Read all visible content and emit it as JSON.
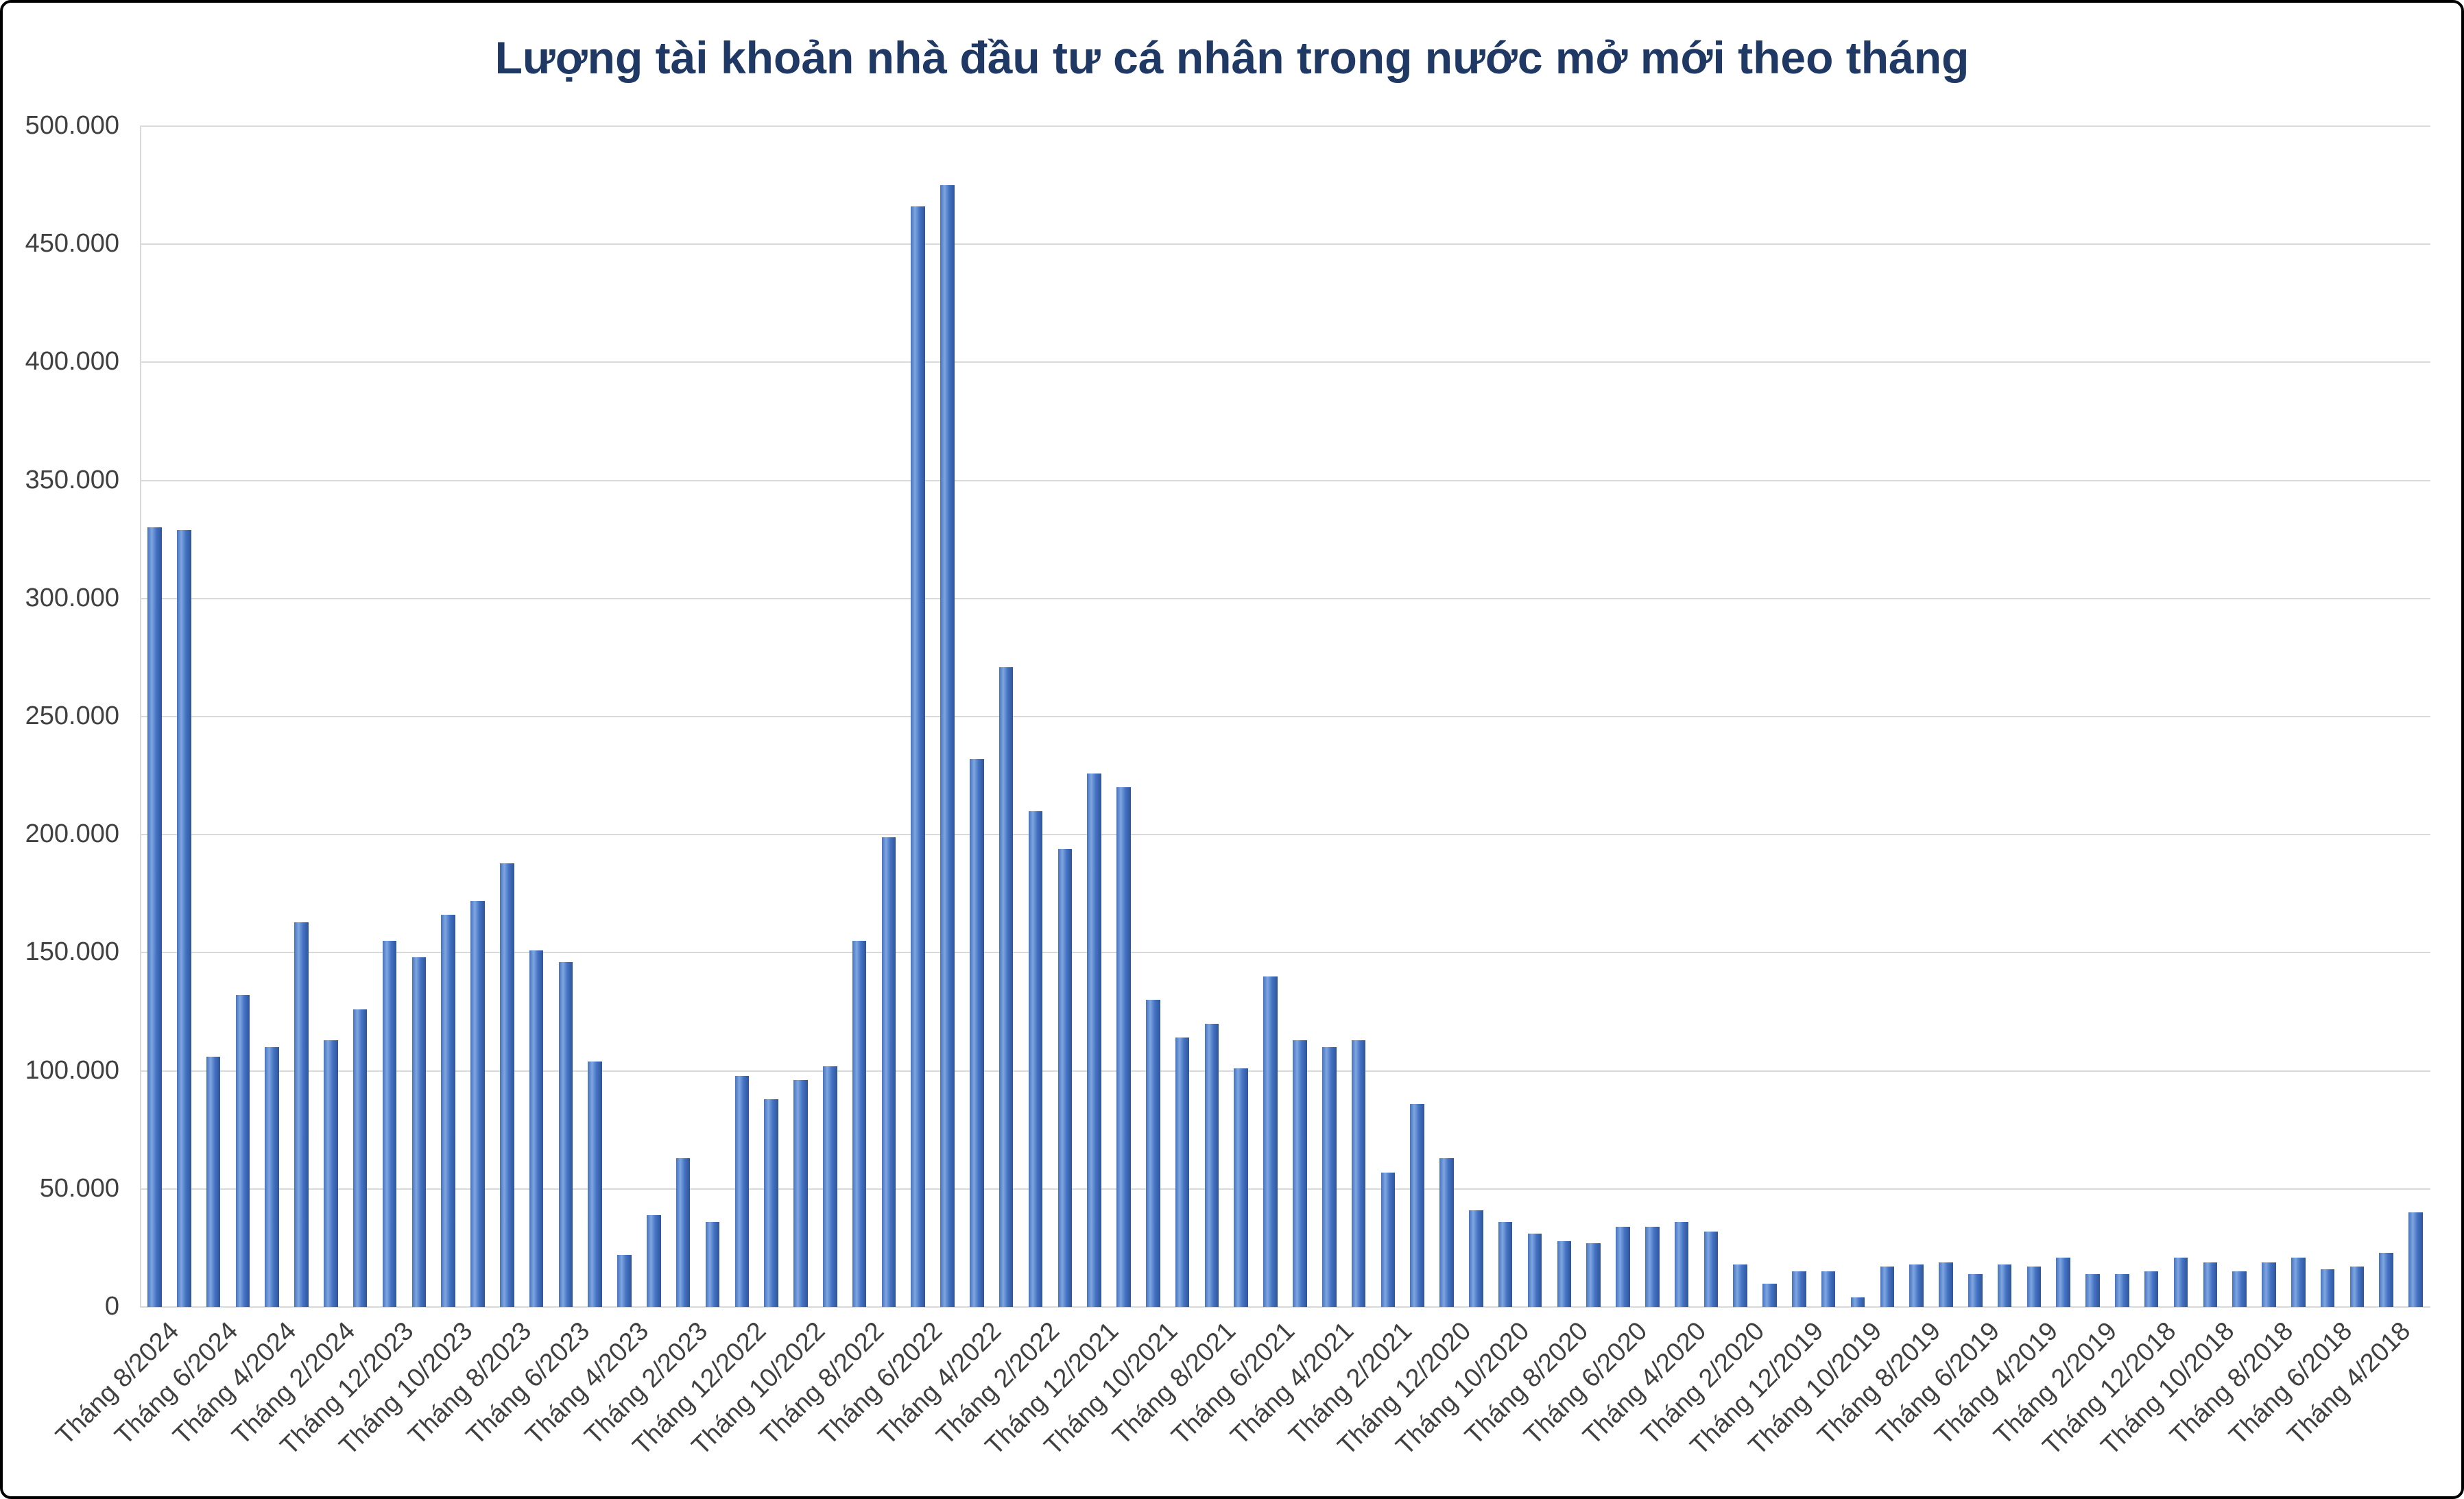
{
  "chart_data": {
    "type": "bar",
    "title": "Lượng tài khoản nhà đầu tư cá nhân trong nước mở mới theo tháng",
    "ylabel": "",
    "xlabel": "",
    "ylim": [
      0,
      500000
    ],
    "ytick_step": 50000,
    "grid": true,
    "legend": false,
    "y_tick_labels": [
      "0",
      "50.000",
      "100.000",
      "150.000",
      "200.000",
      "250.000",
      "300.000",
      "350.000",
      "400.000",
      "450.000",
      "500.000"
    ],
    "x_tick_labels": [
      "Tháng 8/2024",
      "Tháng 6/2024",
      "Tháng 4/2024",
      "Tháng 2/2024",
      "Tháng 12/2023",
      "Tháng 10/2023",
      "Tháng 8/2023",
      "Tháng 6/2023",
      "Tháng 4/2023",
      "Tháng 2/2023",
      "Tháng 12/2022",
      "Tháng 10/2022",
      "Tháng 8/2022",
      "Tháng 6/2022",
      "Tháng 4/2022",
      "Tháng 2/2022",
      "Tháng 12/2021",
      "Tháng 10/2021",
      "Tháng 8/2021",
      "Tháng 6/2021",
      "Tháng 4/2021",
      "Tháng 2/2021",
      "Tháng 12/2020",
      "Tháng 10/2020",
      "Tháng 8/2020",
      "Tháng 6/2020",
      "Tháng 4/2020",
      "Tháng 2/2020",
      "Tháng 12/2019",
      "Tháng 10/2019",
      "Tháng 8/2019",
      "Tháng 6/2019",
      "Tháng 4/2019",
      "Tháng 2/2019",
      "Tháng 12/2018",
      "Tháng 10/2018",
      "Tháng 8/2018",
      "Tháng 6/2018",
      "Tháng 4/2018"
    ],
    "label_every": 2,
    "values": [
      330000,
      329000,
      106000,
      132000,
      110000,
      163000,
      113000,
      126000,
      155000,
      148000,
      166000,
      172000,
      188000,
      151000,
      146000,
      104000,
      22000,
      39000,
      63000,
      36000,
      98000,
      88000,
      96000,
      102000,
      155000,
      199000,
      466000,
      475000,
      232000,
      271000,
      210000,
      194000,
      226000,
      220000,
      130000,
      114000,
      120000,
      101000,
      140000,
      113000,
      110000,
      113000,
      57000,
      86000,
      63000,
      41000,
      36000,
      31000,
      28000,
      27000,
      34000,
      34000,
      36000,
      32000,
      18000,
      10000,
      15000,
      15000,
      4000,
      17000,
      18000,
      19000,
      14000,
      18000,
      17000,
      21000,
      14000,
      14000,
      15000,
      21000,
      19000,
      15000,
      19000,
      21000,
      16000,
      17000,
      23000,
      40000
    ]
  },
  "style": {
    "background": "#FFFFFF",
    "frame_border": "#000000",
    "title_color": "#1F3864",
    "axis_text_color": "#404040",
    "gridline_color": "#D9D9D9",
    "bar_color_light": "#7FA6DE",
    "bar_color_mid": "#4472C4",
    "bar_color_dark": "#2F5597"
  }
}
